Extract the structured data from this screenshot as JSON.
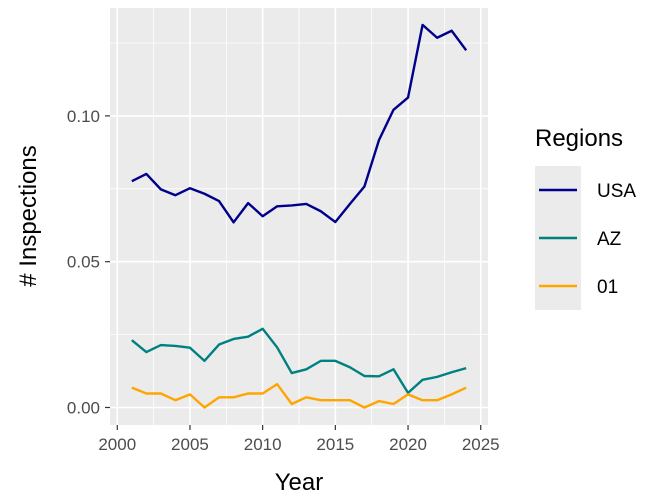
{
  "chart_data": {
    "type": "line",
    "xlabel": "Year",
    "ylabel": "# Inspections",
    "xlim": [
      1999.5,
      2025.5
    ],
    "ylim": [
      -0.006,
      0.137
    ],
    "xticks": [
      2000,
      2005,
      2010,
      2015,
      2020,
      2025
    ],
    "xtick_labels": [
      "2000",
      "2005",
      "2010",
      "2015",
      "2020",
      "2025"
    ],
    "yticks": [
      0,
      0.05,
      0.1
    ],
    "ytick_labels": [
      "0.00",
      "0.05",
      "0.10"
    ],
    "grid": true,
    "legend": {
      "title": "Regions",
      "position": "right"
    },
    "x": [
      2001,
      2002,
      2003,
      2004,
      2005,
      2006,
      2007,
      2008,
      2009,
      2010,
      2011,
      2012,
      2013,
      2014,
      2015,
      2016,
      2017,
      2018,
      2019,
      2020,
      2021,
      2022,
      2023,
      2024
    ],
    "series": [
      {
        "name": "USA",
        "color": "#00008b",
        "values": [
          0.0776,
          0.0801,
          0.0748,
          0.0728,
          0.0752,
          0.0733,
          0.0708,
          0.0635,
          0.0701,
          0.0656,
          0.069,
          0.0693,
          0.0698,
          0.0673,
          0.0636,
          0.0698,
          0.0758,
          0.0917,
          0.1021,
          0.1063,
          0.1312,
          0.1268,
          0.1292,
          0.1225
        ]
      },
      {
        "name": "AZ",
        "color": "#008080",
        "values": [
          0.0231,
          0.019,
          0.0214,
          0.0211,
          0.0205,
          0.016,
          0.0216,
          0.0235,
          0.0243,
          0.027,
          0.0206,
          0.0118,
          0.0131,
          0.016,
          0.016,
          0.0138,
          0.0108,
          0.0107,
          0.0131,
          0.005,
          0.0095,
          0.0105,
          0.0121,
          0.0135
        ]
      },
      {
        "name": "01",
        "color": "#ffa500",
        "values": [
          0.0068,
          0.0048,
          0.0048,
          0.0025,
          0.0045,
          0.0,
          0.0035,
          0.0035,
          0.0048,
          0.0048,
          0.008,
          0.0012,
          0.0035,
          0.0025,
          0.0025,
          0.0025,
          0.0,
          0.0022,
          0.0012,
          0.0045,
          0.0025,
          0.0025,
          0.0045,
          0.0068
        ]
      }
    ],
    "panel_color": "#ebebeb",
    "grid_color": "#ffffff"
  }
}
